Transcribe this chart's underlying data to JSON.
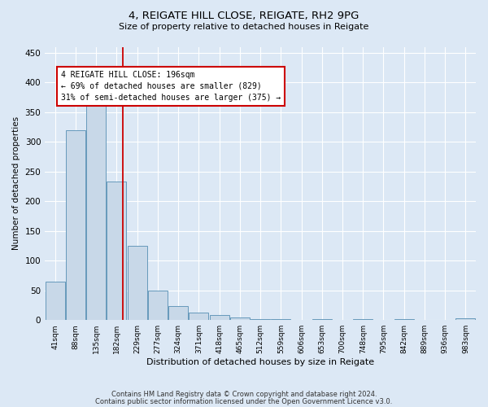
{
  "title1": "4, REIGATE HILL CLOSE, REIGATE, RH2 9PG",
  "title2": "Size of property relative to detached houses in Reigate",
  "xlabel": "Distribution of detached houses by size in Reigate",
  "ylabel": "Number of detached properties",
  "footer1": "Contains HM Land Registry data © Crown copyright and database right 2024.",
  "footer2": "Contains public sector information licensed under the Open Government Licence v3.0.",
  "bin_labels": [
    "41sqm",
    "88sqm",
    "135sqm",
    "182sqm",
    "229sqm",
    "277sqm",
    "324sqm",
    "371sqm",
    "418sqm",
    "465sqm",
    "512sqm",
    "559sqm",
    "606sqm",
    "653sqm",
    "700sqm",
    "748sqm",
    "795sqm",
    "842sqm",
    "889sqm",
    "936sqm",
    "983sqm"
  ],
  "bar_values": [
    65,
    320,
    360,
    233,
    125,
    50,
    23,
    13,
    8,
    5,
    2,
    2,
    0,
    2,
    0,
    2,
    0,
    2,
    0,
    0,
    3
  ],
  "bar_color": "#c8d8e8",
  "bar_edge_color": "#6699bb",
  "vline_color": "#cc0000",
  "annotation_line1": "4 REIGATE HILL CLOSE: 196sqm",
  "annotation_line2": "← 69% of detached houses are smaller (829)",
  "annotation_line3": "31% of semi-detached houses are larger (375) →",
  "annotation_box_color": "#ffffff",
  "annotation_box_edge_color": "#cc0000",
  "ylim": [
    0,
    460
  ],
  "yticks": [
    0,
    50,
    100,
    150,
    200,
    250,
    300,
    350,
    400,
    450
  ],
  "background_color": "#dce8f5",
  "grid_color": "#ffffff"
}
